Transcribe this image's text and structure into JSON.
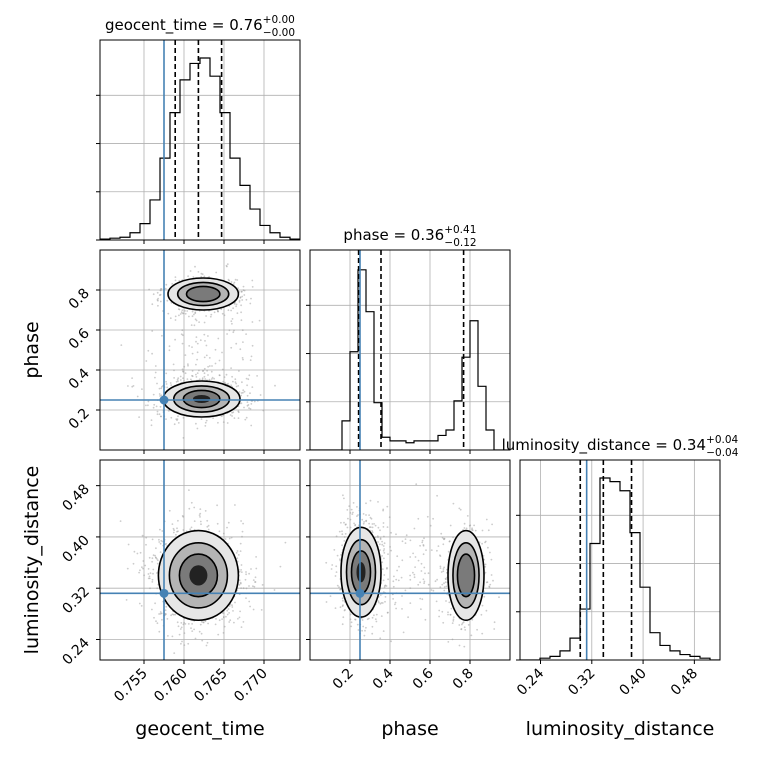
{
  "chart_data": {
    "type": "corner",
    "parameters": [
      "geocent_time",
      "phase",
      "luminosity_distance"
    ],
    "truths": {
      "geocent_time": 0.7575,
      "phase": 0.25,
      "luminosity_distance": 0.312
    },
    "titles": [
      {
        "param": "geocent_time",
        "prefix": "geocent_time = ",
        "median": "0.76",
        "plus": "+0.00",
        "minus": "−0.00"
      },
      {
        "param": "phase",
        "prefix": "phase = ",
        "median": "0.36",
        "plus": "+0.41",
        "minus": "−0.12"
      },
      {
        "param": "luminosity_distance",
        "prefix": "luminosity_distance = ",
        "median": "0.34",
        "plus": "+0.04",
        "minus": "−0.04"
      }
    ],
    "axis_labels": {
      "x": [
        "geocent_time",
        "phase",
        "luminosity_distance"
      ],
      "y": [
        "phase",
        "luminosity_distance"
      ]
    },
    "ranges": {
      "geocent_time": [
        0.7495,
        0.7745
      ],
      "phase": [
        0.0,
        1.0
      ],
      "luminosity_distance": [
        0.208,
        0.52
      ]
    },
    "ticks": {
      "geocent_time": [
        {
          "v": 0.755,
          "label": "0.755"
        },
        {
          "v": 0.76,
          "label": "0.760"
        },
        {
          "v": 0.765,
          "label": "0.765"
        },
        {
          "v": 0.77,
          "label": "0.770"
        }
      ],
      "phase": [
        {
          "v": 0.2,
          "label": "0.2"
        },
        {
          "v": 0.4,
          "label": "0.4"
        },
        {
          "v": 0.6,
          "label": "0.6"
        },
        {
          "v": 0.8,
          "label": "0.8"
        }
      ],
      "luminosity_distance": [
        {
          "v": 0.24,
          "label": "0.24"
        },
        {
          "v": 0.32,
          "label": "0.32"
        },
        {
          "v": 0.4,
          "label": "0.40"
        },
        {
          "v": 0.48,
          "label": "0.48"
        }
      ]
    },
    "quantiles": {
      "geocent_time": [
        0.7589,
        0.7618,
        0.7647
      ],
      "phase": [
        0.243,
        0.355,
        0.768
      ],
      "luminosity_distance": [
        0.302,
        0.338,
        0.382
      ]
    },
    "histograms": {
      "geocent_time": [
        0.005,
        0.01,
        0.015,
        0.04,
        0.09,
        0.22,
        0.45,
        0.7,
        0.88,
        0.97,
        1.0,
        0.9,
        0.7,
        0.45,
        0.3,
        0.17,
        0.08,
        0.04,
        0.015,
        0.005
      ],
      "phase": [
        0.0,
        0.0,
        0.0,
        0.0,
        0.16,
        0.54,
        0.99,
        0.76,
        0.26,
        0.07,
        0.05,
        0.05,
        0.04,
        0.05,
        0.05,
        0.05,
        0.08,
        0.11,
        0.27,
        0.51,
        0.71,
        0.35,
        0.11,
        0.0,
        0.0
      ],
      "luminosity_distance": [
        0.0,
        0.0,
        0.01,
        0.02,
        0.05,
        0.12,
        0.28,
        0.64,
        1.0,
        0.98,
        0.93,
        0.7,
        0.4,
        0.15,
        0.08,
        0.05,
        0.03,
        0.02,
        0.01,
        0.0
      ]
    },
    "modes_2d": {
      "geocent_time|phase": [
        {
          "x": 0.7622,
          "y": 0.255,
          "sx": 0.0024,
          "sy": 0.045,
          "w": 0.65
        },
        {
          "x": 0.7624,
          "y": 0.78,
          "sx": 0.0022,
          "sy": 0.04,
          "w": 0.35
        }
      ],
      "geocent_time|luminosity_distance": [
        {
          "x": 0.7618,
          "y": 0.34,
          "sx": 0.0025,
          "sy": 0.035,
          "w": 1.0
        }
      ],
      "phase|luminosity_distance": [
        {
          "x": 0.255,
          "y": 0.345,
          "sx": 0.05,
          "sy": 0.035,
          "w": 0.65
        },
        {
          "x": 0.78,
          "y": 0.34,
          "sx": 0.045,
          "sy": 0.035,
          "w": 0.35
        }
      ]
    },
    "grid": true
  }
}
